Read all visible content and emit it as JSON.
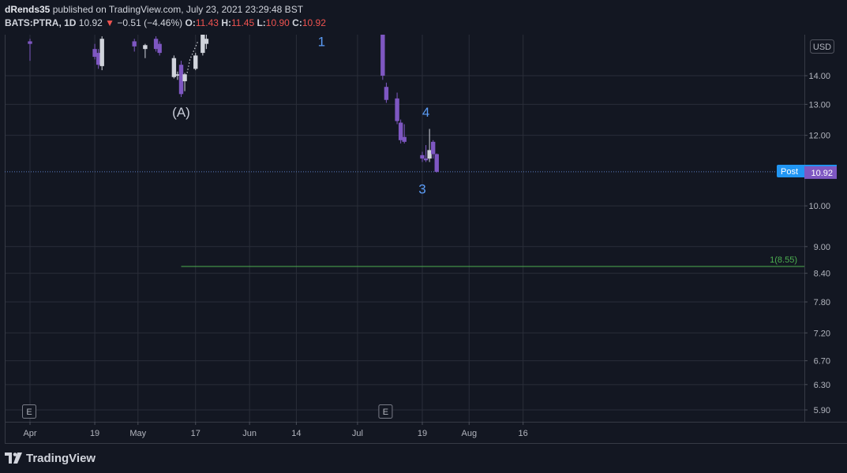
{
  "header": {
    "author": "dRends35",
    "published_text": "published on TradingView.com, July 23, 2021 23:29:48 BST",
    "symbol": "BATS:PTRA, 1D",
    "last": "10.92",
    "change_arrow": "▼",
    "change": "−0.51 (−4.46%)",
    "open_label": "O:",
    "open": "11.43",
    "high_label": "H:",
    "high": "11.45",
    "low_label": "L:",
    "low": "10.90",
    "close_label": "C:",
    "close": "10.92"
  },
  "footer": {
    "brand": "TradingView"
  },
  "colors": {
    "background": "#131722",
    "grid": "#2a2e39",
    "up_candle": "#d1d4dc",
    "down_candle": "#7e57c2",
    "target_line": "#4caf50",
    "wave_label": "#5b9cf6",
    "correction_label": "#c8ccd8",
    "post_badge": "#2196f3",
    "price_badge": "#7e57c2"
  },
  "chart_data": {
    "type": "candlestick",
    "currency": "USD",
    "price_scale": "log",
    "y_ticks": [
      14.0,
      13.0,
      12.0,
      10.0,
      9.0,
      8.4,
      7.8,
      7.2,
      6.7,
      6.3,
      5.9
    ],
    "y_tick_labels": [
      "14.00",
      "13.00",
      "12.00",
      "10.00",
      "9.00",
      "8.40",
      "7.80",
      "7.20",
      "6.70",
      "6.30",
      "5.90"
    ],
    "x_ticks": [
      {
        "date": "2021-04-01",
        "label": "Apr"
      },
      {
        "date": "2021-04-19",
        "label": "19"
      },
      {
        "date": "2021-05-01",
        "label": "May"
      },
      {
        "date": "2021-05-17",
        "label": "17"
      },
      {
        "date": "2021-06-01",
        "label": "Jun"
      },
      {
        "date": "2021-06-14",
        "label": "14"
      },
      {
        "date": "2021-07-01",
        "label": "Jul"
      },
      {
        "date": "2021-07-19",
        "label": "19"
      },
      {
        "date": "2021-08-01",
        "label": "Aug"
      },
      {
        "date": "2021-08-16",
        "label": "16"
      }
    ],
    "candles": [
      {
        "date": "2021-04-01",
        "open": 15.3,
        "high": 15.4,
        "low": 14.55,
        "close": 15.2
      },
      {
        "date": "2021-04-19",
        "open": 15.0,
        "high": 15.2,
        "low": 14.6,
        "close": 14.7
      },
      {
        "date": "2021-04-20",
        "open": 14.85,
        "high": 15.0,
        "low": 14.25,
        "close": 14.4
      },
      {
        "date": "2021-04-21",
        "open": 14.35,
        "high": 15.5,
        "low": 14.2,
        "close": 15.4
      },
      {
        "date": "2021-04-30",
        "open": 15.3,
        "high": 15.4,
        "low": 14.9,
        "close": 15.1
      },
      {
        "date": "2021-05-03",
        "open": 15.0,
        "high": 15.2,
        "low": 14.65,
        "close": 15.15
      },
      {
        "date": "2021-05-06",
        "open": 15.4,
        "high": 15.5,
        "low": 14.9,
        "close": 15.0
      },
      {
        "date": "2021-05-07",
        "open": 15.2,
        "high": 15.3,
        "low": 14.75,
        "close": 14.85
      },
      {
        "date": "2021-05-11",
        "open": 13.95,
        "high": 14.75,
        "low": 13.9,
        "close": 14.65
      },
      {
        "date": "2021-05-12",
        "open": 14.0,
        "high": 14.15,
        "low": 13.85,
        "close": 14.05
      },
      {
        "date": "2021-05-13",
        "open": 14.4,
        "high": 14.55,
        "low": 13.25,
        "close": 13.35
      },
      {
        "date": "2021-05-14",
        "open": 13.8,
        "high": 14.1,
        "low": 13.45,
        "close": 14.05
      },
      {
        "date": "2021-05-17",
        "open": 14.25,
        "high": 14.85,
        "low": 14.2,
        "close": 14.75
      },
      {
        "date": "2021-05-19",
        "open": 14.85,
        "high": 15.8,
        "low": 14.75,
        "close": 15.6
      },
      {
        "date": "2021-05-20",
        "open": 15.2,
        "high": 15.6,
        "low": 15.0,
        "close": 15.4
      },
      {
        "date": "2021-07-08",
        "open": 15.8,
        "high": 16.0,
        "low": 13.85,
        "close": 14.0
      },
      {
        "date": "2021-07-09",
        "open": 13.6,
        "high": 13.75,
        "low": 13.05,
        "close": 13.15
      },
      {
        "date": "2021-07-12",
        "open": 13.2,
        "high": 13.4,
        "low": 12.35,
        "close": 12.45
      },
      {
        "date": "2021-07-13",
        "open": 12.4,
        "high": 12.5,
        "low": 11.75,
        "close": 11.85
      },
      {
        "date": "2021-07-14",
        "open": 11.95,
        "high": 12.35,
        "low": 11.75,
        "close": 11.8
      },
      {
        "date": "2021-07-19",
        "open": 11.4,
        "high": 11.5,
        "low": 11.2,
        "close": 11.3
      },
      {
        "date": "2021-07-20",
        "open": 11.3,
        "high": 11.7,
        "low": 11.2,
        "close": 11.25
      },
      {
        "date": "2021-07-21",
        "open": 11.3,
        "high": 12.2,
        "low": 11.2,
        "close": 11.55
      },
      {
        "date": "2021-07-22",
        "open": 11.8,
        "high": 11.85,
        "low": 11.3,
        "close": 11.43
      },
      {
        "date": "2021-07-23",
        "open": 11.43,
        "high": 11.45,
        "low": 10.9,
        "close": 10.92
      }
    ],
    "wave_labels": [
      {
        "text": "1",
        "date": "2021-06-21",
        "price": 15.3
      },
      {
        "text": "(A)",
        "date": "2021-05-13",
        "price": 12.75
      },
      {
        "text": "4",
        "date": "2021-07-20",
        "price": 12.75
      },
      {
        "text": "3",
        "date": "2021-07-19",
        "price": 10.45
      }
    ],
    "target_line": {
      "label": "1(8.55)",
      "price": 8.55,
      "start_date": "2021-05-13"
    },
    "last_price": 10.92,
    "post_price": 10.94,
    "post_label": "Post",
    "event_markers": [
      {
        "label": "E",
        "date": "2021-04-01"
      },
      {
        "label": "E",
        "date": "2021-07-09"
      }
    ]
  }
}
